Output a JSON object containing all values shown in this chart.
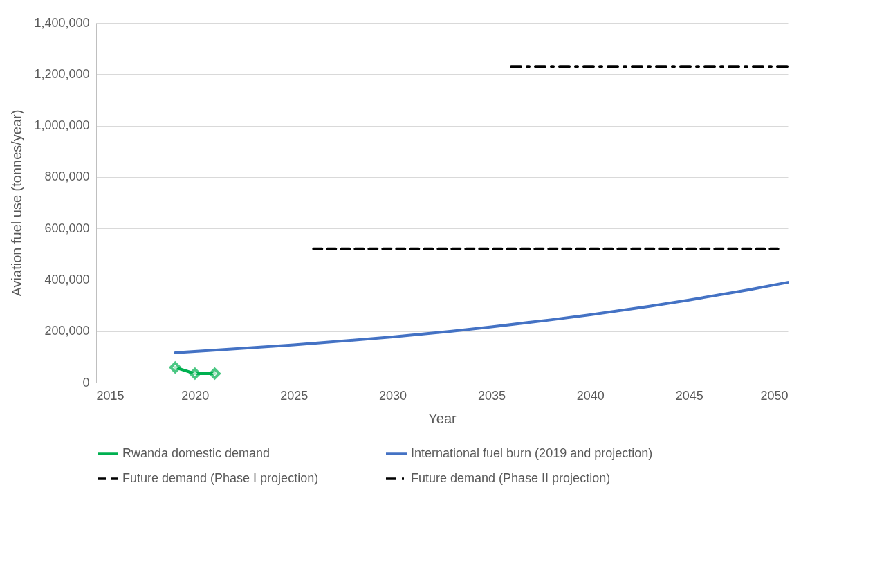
{
  "chart_data": {
    "type": "line",
    "xlabel": "Year",
    "ylabel": "Aviation fuel use (tonnes/year)",
    "xlim": [
      2015,
      2050
    ],
    "xticks": [
      2015,
      2020,
      2025,
      2030,
      2035,
      2040,
      2045,
      2050
    ],
    "ylim": [
      0,
      1400000
    ],
    "yticks": [
      0,
      {
        "value": 200000,
        "label": "200,000"
      },
      {
        "value": 400000,
        "label": "400,000"
      },
      {
        "value": 600000,
        "label": "600,000"
      },
      {
        "value": 800000,
        "label": "800,000"
      },
      {
        "value": 1000000,
        "label": "1,000,000"
      },
      {
        "value": 1200000,
        "label": "1,200,000"
      },
      {
        "value": 1400000,
        "label": "1,400,000"
      }
    ],
    "grid": "y",
    "legend": "bottom",
    "series": [
      {
        "name": "Rwanda domestic demand",
        "color": "#00b050",
        "x": [
          2019,
          2020,
          2021
        ],
        "values": [
          59000,
          35000,
          35000
        ],
        "marker": "diamond",
        "line_style": "solid"
      },
      {
        "name": "International fuel burn (2019 and projection)",
        "color": "#4472c4",
        "x": [
          2019,
          2022,
          2025,
          2028,
          2030,
          2033,
          2035,
          2038,
          2040,
          2043,
          2045,
          2048,
          2050
        ],
        "values": [
          116000,
          131000,
          147000,
          165000,
          178000,
          200000,
          217000,
          244000,
          264000,
          297000,
          321000,
          361000,
          390000
        ],
        "line_style": "solid"
      },
      {
        "name": "Future demand (Phase I projection)",
        "color": "#000000",
        "x": [
          2026,
          2049.5
        ],
        "values": [
          520000,
          520000
        ],
        "line_style": "dashed"
      },
      {
        "name": "Future demand (Phase II projection)",
        "color": "#000000",
        "x": [
          2036,
          2050
        ],
        "values": [
          1230000,
          1230000
        ],
        "line_style": "dashdot"
      }
    ]
  }
}
